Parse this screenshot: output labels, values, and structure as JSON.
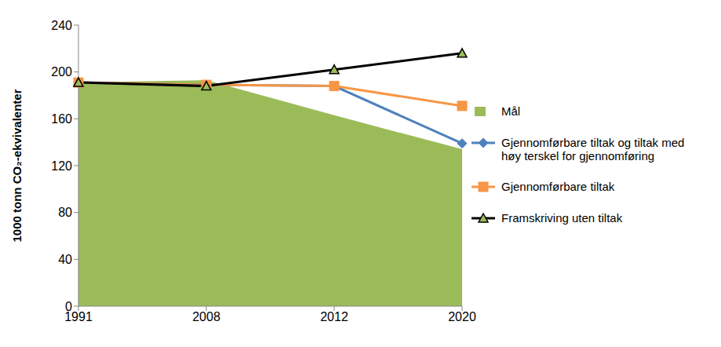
{
  "chart_data": {
    "type": "line",
    "y_label": "1000 tonn CO₂-ekvivalenter",
    "categories": [
      "1991",
      "2008",
      "2012",
      "2020"
    ],
    "series": [
      {
        "name": "Mål",
        "type": "area",
        "color": "#9BBB59",
        "values": [
          191,
          193,
          163,
          134
        ]
      },
      {
        "name": "Gjennomførbare tiltak og tiltak med høy terskel for gjennomføring",
        "type": "line",
        "color": "#4F81BD",
        "marker": "diamond",
        "values": [
          191,
          189,
          188,
          139
        ]
      },
      {
        "name": "Gjennomførbare tiltak",
        "type": "line",
        "color": "#F79646",
        "marker": "square",
        "values": [
          191,
          189,
          188,
          171
        ]
      },
      {
        "name": "Framskriving uten tiltak",
        "type": "line",
        "color": "#000000",
        "marker": "triangle",
        "values": [
          191,
          188,
          202,
          216
        ]
      }
    ],
    "ylim": [
      0,
      240
    ],
    "yticks": [
      0,
      40,
      80,
      120,
      160,
      200,
      240
    ],
    "grid": false,
    "legend": "right"
  }
}
